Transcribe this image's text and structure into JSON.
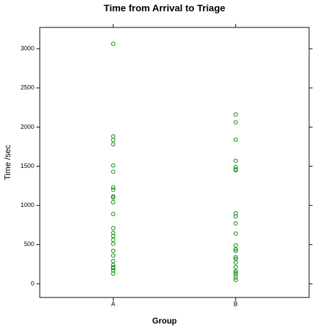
{
  "chart_data": {
    "type": "strip",
    "title": "Time from Arrival to Triage",
    "x_label": "Group",
    "y_label": "Time /sec",
    "categories": [
      "A",
      "B"
    ],
    "values": [
      [
        3063,
        1880,
        1835,
        1780,
        1510,
        1430,
        1230,
        1200,
        1115,
        1100,
        1040,
        890,
        710,
        650,
        610,
        560,
        510,
        420,
        360,
        290,
        240,
        210,
        200,
        170,
        130
      ],
      [
        2160,
        2060,
        1840,
        1570,
        1490,
        1460,
        1450,
        900,
        860,
        770,
        640,
        490,
        440,
        420,
        340,
        320,
        270,
        210,
        160,
        140,
        120,
        80,
        50
      ]
    ],
    "color": "#0a8a0a",
    "ylim": [
      -175,
      3272
    ],
    "yticks": [
      0,
      500,
      1000,
      1500,
      2000,
      2500,
      3000
    ]
  }
}
